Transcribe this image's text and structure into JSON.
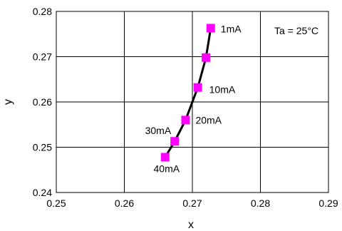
{
  "chart_data": {
    "type": "line",
    "title": "",
    "xlabel": "x",
    "ylabel": "y",
    "xlim": [
      0.25,
      0.29
    ],
    "ylim": [
      0.24,
      0.28
    ],
    "x_ticks": [
      "0.25",
      "0.26",
      "0.27",
      "0.28",
      "0.29"
    ],
    "y_ticks": [
      "0.24",
      "0.25",
      "0.26",
      "0.27",
      "0.28"
    ],
    "grid": true,
    "annotation": "Ta = 25°C",
    "series": [
      {
        "points": [
          {
            "x": 0.2727,
            "y": 0.2763,
            "label": "1mA"
          },
          {
            "x": 0.272,
            "y": 0.2698,
            "label": ""
          },
          {
            "x": 0.2708,
            "y": 0.2632,
            "label": "10mA"
          },
          {
            "x": 0.269,
            "y": 0.256,
            "label": "20mA"
          },
          {
            "x": 0.2674,
            "y": 0.2513,
            "label": "30mA"
          },
          {
            "x": 0.266,
            "y": 0.2478,
            "label": "40mA"
          }
        ],
        "line_color": "#000000",
        "marker_color": "#ff00ff"
      }
    ]
  }
}
